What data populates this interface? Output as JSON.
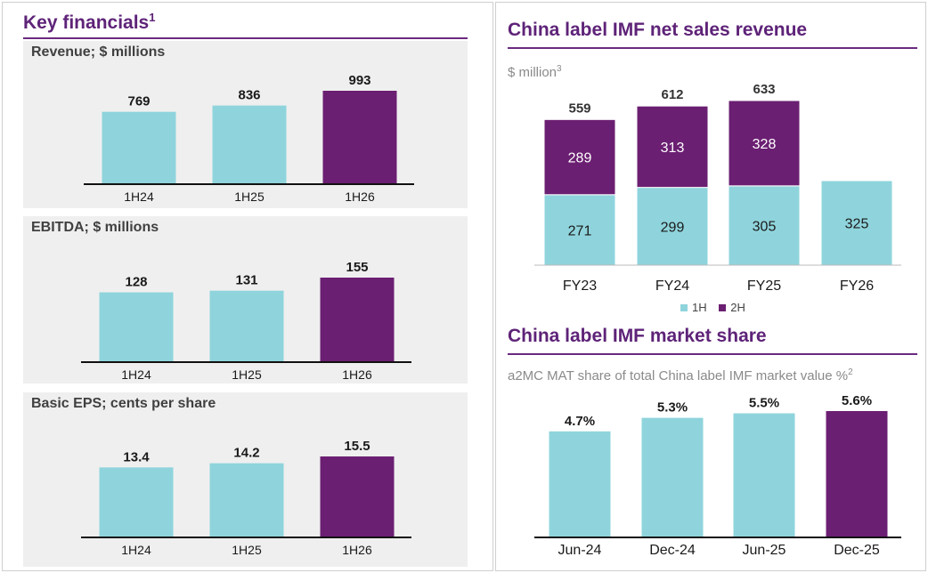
{
  "colors": {
    "light": "#8fd4dc",
    "dark": "#6b1f72",
    "accent": "#5e2378"
  },
  "left": {
    "title": "Key financials",
    "title_sup": "1"
  },
  "right": {
    "top_title": "China label IMF net sales revenue",
    "top_subtitle": "$ million",
    "top_subtitle_sup": "3",
    "bottom_title": "China label IMF market share",
    "bottom_subtitle": "a2MC MAT share of total China label IMF market value %",
    "bottom_subtitle_sup": "2",
    "legend": [
      {
        "label": "1H",
        "color": "#8fd4dc"
      },
      {
        "label": "2H",
        "color": "#6b1f72"
      }
    ]
  },
  "chart_data": [
    {
      "type": "bar",
      "title": "Revenue; $ millions",
      "categories": [
        "1H24",
        "1H25",
        "1H26"
      ],
      "values": [
        769,
        836,
        993
      ],
      "labels": [
        "769",
        "836",
        "993"
      ],
      "highlight_index": 2,
      "ylim": [
        0,
        1000
      ]
    },
    {
      "type": "bar",
      "title": "EBITDA; $ millions",
      "categories": [
        "1H24",
        "1H25",
        "1H26"
      ],
      "values": [
        128,
        131,
        155
      ],
      "labels": [
        "128",
        "131",
        "155"
      ],
      "highlight_index": 2,
      "ylim": [
        0,
        160
      ]
    },
    {
      "type": "bar",
      "title": "Basic EPS; cents per share",
      "categories": [
        "1H24",
        "1H25",
        "1H26"
      ],
      "values": [
        13.4,
        14.2,
        15.5
      ],
      "labels": [
        "13.4",
        "14.2",
        "15.5"
      ],
      "highlight_index": 2,
      "ylim": [
        0,
        16
      ]
    },
    {
      "type": "bar",
      "stacked": true,
      "title": "China label IMF net sales revenue",
      "categories": [
        "FY23",
        "FY24",
        "FY25",
        "FY26"
      ],
      "series": [
        {
          "name": "1H",
          "values": [
            271,
            299,
            305,
            325
          ]
        },
        {
          "name": "2H",
          "values": [
            289,
            313,
            328,
            null
          ]
        }
      ],
      "totals": [
        "559",
        "612",
        "633",
        ""
      ],
      "ylim": [
        0,
        700
      ]
    },
    {
      "type": "bar",
      "title": "China label IMF market share",
      "categories": [
        "Jun-24",
        "Dec-24",
        "Jun-25",
        "Dec-25"
      ],
      "values": [
        4.7,
        5.3,
        5.5,
        5.6
      ],
      "labels": [
        "4.7%",
        "5.3%",
        "5.5%",
        "5.6%"
      ],
      "highlight_index": 3,
      "ylim": [
        0,
        6
      ]
    }
  ]
}
